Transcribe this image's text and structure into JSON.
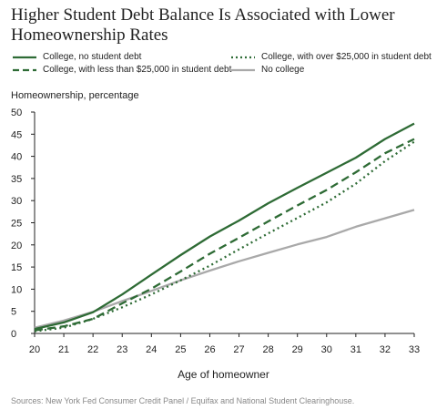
{
  "chart_data": {
    "type": "line",
    "title": "Higher Student Debt Balance Is Associated with Lower Homeownership Rates",
    "ylabel": "Homeownership, percentage",
    "xlabel": "Age of homeowner",
    "source": "Sources: New York Fed Consumer Credit Panel / Equifax and National Student Clearinghouse.",
    "x": [
      20,
      21,
      22,
      23,
      24,
      25,
      26,
      27,
      28,
      29,
      30,
      31,
      32,
      33
    ],
    "xlim": [
      20,
      33
    ],
    "ylim": [
      0,
      50
    ],
    "yticks": [
      0,
      5,
      10,
      15,
      20,
      25,
      30,
      35,
      40,
      45,
      50
    ],
    "grid": false,
    "legend_position": "top",
    "series": [
      {
        "name": "College, no student debt",
        "style": "solid",
        "color": "#2e6b35",
        "values": [
          1.0,
          2.5,
          4.8,
          8.8,
          13.3,
          17.7,
          21.9,
          25.5,
          29.4,
          32.9,
          36.3,
          39.7,
          43.9,
          47.4
        ]
      },
      {
        "name": "College, with less than $25,000 in student debt",
        "style": "dashed",
        "color": "#2e6b35",
        "values": [
          0.7,
          1.6,
          3.3,
          6.8,
          10.1,
          14.0,
          18.0,
          21.6,
          25.3,
          28.9,
          32.4,
          36.4,
          40.7,
          43.9
        ]
      },
      {
        "name": "College, with over $25,000 in student debt",
        "style": "dotted",
        "color": "#2e6b35",
        "values": [
          0.5,
          1.3,
          3.3,
          5.9,
          8.8,
          12.0,
          15.3,
          19.0,
          22.6,
          26.1,
          29.6,
          33.8,
          38.9,
          43.3
        ]
      },
      {
        "name": "No college",
        "style": "solid",
        "color": "#a9a9a9",
        "values": [
          1.3,
          2.9,
          4.9,
          7.3,
          9.6,
          12.0,
          14.2,
          16.3,
          18.2,
          20.1,
          21.8,
          24.1,
          26.0,
          27.9
        ]
      }
    ]
  }
}
